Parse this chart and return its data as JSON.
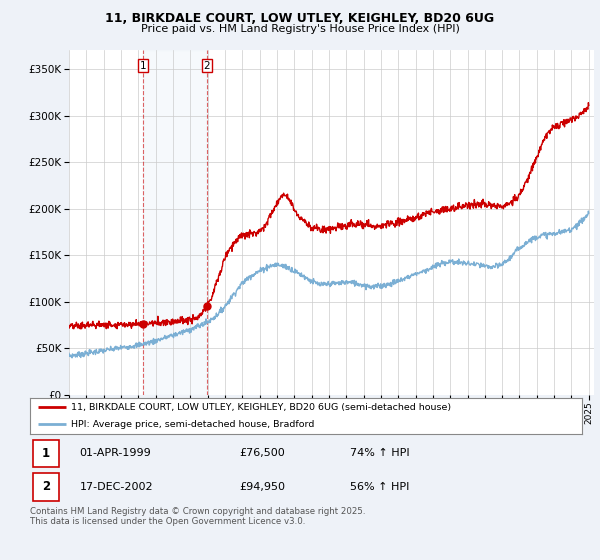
{
  "title_line1": "11, BIRKDALE COURT, LOW UTLEY, KEIGHLEY, BD20 6UG",
  "title_line2": "Price paid vs. HM Land Registry's House Price Index (HPI)",
  "legend_label1": "11, BIRKDALE COURT, LOW UTLEY, KEIGHLEY, BD20 6UG (semi-detached house)",
  "legend_label2": "HPI: Average price, semi-detached house, Bradford",
  "transaction1_date": "01-APR-1999",
  "transaction1_price": "£76,500",
  "transaction1_hpi": "74% ↑ HPI",
  "transaction2_date": "17-DEC-2002",
  "transaction2_price": "£94,950",
  "transaction2_hpi": "56% ↑ HPI",
  "footer": "Contains HM Land Registry data © Crown copyright and database right 2025.\nThis data is licensed under the Open Government Licence v3.0.",
  "price_color": "#cc0000",
  "hpi_color": "#7bafd4",
  "vline_color": "#cc0000",
  "background_color": "#eef2f8",
  "plot_background": "#ffffff",
  "ylim": [
    0,
    370000
  ],
  "yticks": [
    0,
    50000,
    100000,
    150000,
    200000,
    250000,
    300000,
    350000
  ],
  "transaction1_x": 1999.25,
  "transaction2_x": 2002.96,
  "hpi_x": [
    1995.0,
    1995.5,
    1996.0,
    1996.5,
    1997.0,
    1997.5,
    1998.0,
    1998.5,
    1999.0,
    1999.5,
    2000.0,
    2000.5,
    2001.0,
    2001.5,
    2002.0,
    2002.5,
    2003.0,
    2003.5,
    2004.0,
    2004.5,
    2005.0,
    2005.5,
    2006.0,
    2006.5,
    2007.0,
    2007.5,
    2008.0,
    2008.5,
    2009.0,
    2009.5,
    2010.0,
    2010.5,
    2011.0,
    2011.5,
    2012.0,
    2012.5,
    2013.0,
    2013.5,
    2014.0,
    2014.5,
    2015.0,
    2015.5,
    2016.0,
    2016.5,
    2017.0,
    2017.5,
    2018.0,
    2018.5,
    2019.0,
    2019.5,
    2020.0,
    2020.5,
    2021.0,
    2021.5,
    2022.0,
    2022.5,
    2023.0,
    2023.5,
    2024.0,
    2024.5,
    2025.0
  ],
  "hpi_y": [
    42000,
    43000,
    44500,
    46000,
    47500,
    49000,
    50500,
    52000,
    53500,
    55500,
    58000,
    61000,
    64000,
    67000,
    70000,
    74000,
    78000,
    85000,
    95000,
    108000,
    120000,
    128000,
    133000,
    138000,
    140000,
    138000,
    133000,
    128000,
    122000,
    118000,
    119000,
    120000,
    121000,
    120000,
    118000,
    116000,
    117000,
    119000,
    122000,
    126000,
    130000,
    133000,
    137000,
    141000,
    143000,
    142000,
    141000,
    140000,
    138000,
    137000,
    140000,
    148000,
    158000,
    165000,
    170000,
    172000,
    173000,
    175000,
    178000,
    185000,
    195000
  ],
  "price_x": [
    1995.0,
    1995.3,
    1995.6,
    1995.9,
    1996.2,
    1996.5,
    1996.8,
    1997.1,
    1997.4,
    1997.7,
    1998.0,
    1998.3,
    1998.6,
    1998.9,
    1999.0,
    1999.25,
    1999.5,
    1999.8,
    2000.1,
    2000.4,
    2000.7,
    2001.0,
    2001.3,
    2001.6,
    2001.9,
    2002.2,
    2002.5,
    2002.96,
    2003.2,
    2003.5,
    2003.8,
    2004.0,
    2004.3,
    2004.6,
    2004.9,
    2005.2,
    2005.5,
    2005.8,
    2006.1,
    2006.4,
    2006.7,
    2007.0,
    2007.2,
    2007.4,
    2007.6,
    2007.8,
    2008.0,
    2008.2,
    2008.5,
    2008.8,
    2009.0,
    2009.3,
    2009.6,
    2010.0,
    2010.3,
    2010.6,
    2010.9,
    2011.2,
    2011.5,
    2011.8,
    2012.0,
    2012.3,
    2012.6,
    2012.9,
    2013.2,
    2013.5,
    2013.8,
    2014.0,
    2014.3,
    2014.6,
    2014.9,
    2015.2,
    2015.5,
    2015.8,
    2016.0,
    2016.3,
    2016.6,
    2016.9,
    2017.2,
    2017.5,
    2017.8,
    2018.0,
    2018.3,
    2018.6,
    2018.9,
    2019.2,
    2019.5,
    2019.8,
    2020.0,
    2020.3,
    2020.6,
    2021.0,
    2021.3,
    2021.6,
    2021.9,
    2022.2,
    2022.5,
    2022.8,
    2023.0,
    2023.3,
    2023.6,
    2024.0,
    2024.3,
    2024.6,
    2025.0
  ],
  "price_y": [
    73000,
    73500,
    74000,
    74500,
    74800,
    75000,
    75200,
    75400,
    75500,
    75600,
    75700,
    75800,
    75900,
    76000,
    76200,
    76500,
    76700,
    77000,
    77500,
    78000,
    78500,
    79000,
    79500,
    80000,
    80500,
    81000,
    83000,
    94950,
    103000,
    120000,
    135000,
    148000,
    158000,
    165000,
    170000,
    172000,
    173000,
    174000,
    178000,
    185000,
    195000,
    205000,
    212000,
    217000,
    213000,
    208000,
    200000,
    193000,
    188000,
    183000,
    180000,
    178000,
    177000,
    178000,
    179000,
    180000,
    181000,
    182000,
    183000,
    183500,
    183000,
    182000,
    181000,
    181500,
    182000,
    183000,
    184000,
    185000,
    186000,
    188000,
    190000,
    192000,
    194000,
    196000,
    197000,
    198000,
    199000,
    200000,
    201000,
    202000,
    203000,
    203000,
    204000,
    204500,
    205000,
    204000,
    203500,
    203000,
    204000,
    205000,
    208000,
    215000,
    225000,
    238000,
    250000,
    265000,
    278000,
    285000,
    288000,
    290000,
    292000,
    295000,
    298000,
    302000,
    310000
  ]
}
